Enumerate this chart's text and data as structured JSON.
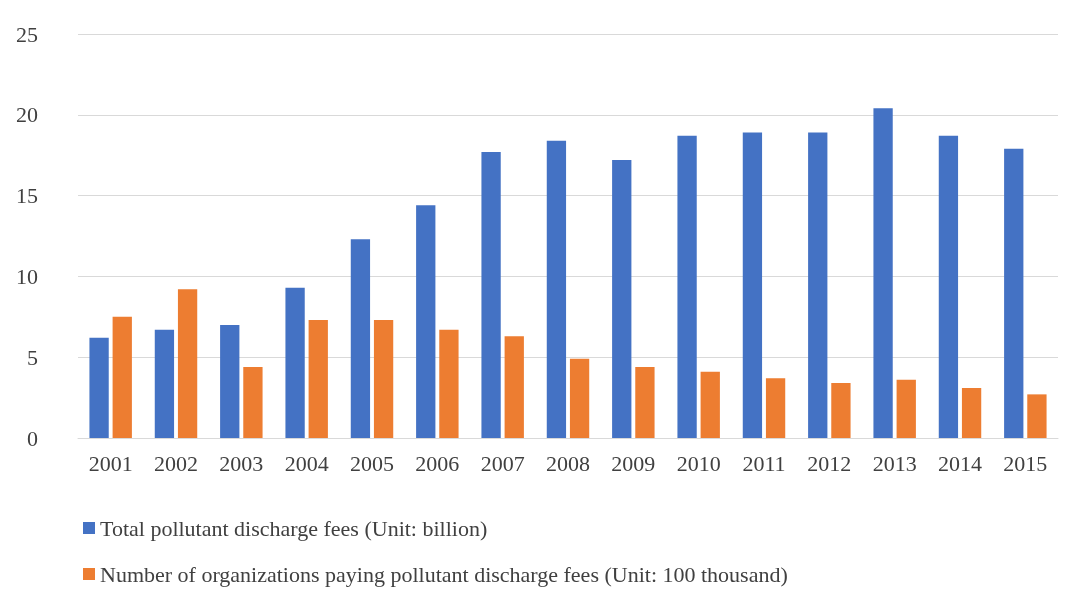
{
  "chart_data": {
    "type": "bar",
    "categories": [
      "2001",
      "2002",
      "2003",
      "2004",
      "2005",
      "2006",
      "2007",
      "2008",
      "2009",
      "2010",
      "2011",
      "2012",
      "2013",
      "2014",
      "2015"
    ],
    "series": [
      {
        "name": "Total pollutant discharge fees (Unit: billion)",
        "color": "#4472c4",
        "values": [
          6.2,
          6.7,
          7.0,
          9.3,
          12.3,
          14.4,
          17.7,
          18.4,
          17.2,
          18.7,
          18.9,
          18.9,
          20.4,
          18.7,
          17.9
        ]
      },
      {
        "name": "Number of organizations paying pollutant discharge fees (Unit: 100 thousand)",
        "color": "#ed7d31",
        "values": [
          7.5,
          9.2,
          4.4,
          7.3,
          7.3,
          6.7,
          6.3,
          4.9,
          4.4,
          4.1,
          3.7,
          3.4,
          3.6,
          3.1,
          2.7
        ]
      }
    ],
    "ylim": [
      0,
      25
    ],
    "yticks": [
      0,
      5,
      10,
      15,
      20,
      25
    ],
    "grid": "y",
    "legend": "bottom"
  }
}
